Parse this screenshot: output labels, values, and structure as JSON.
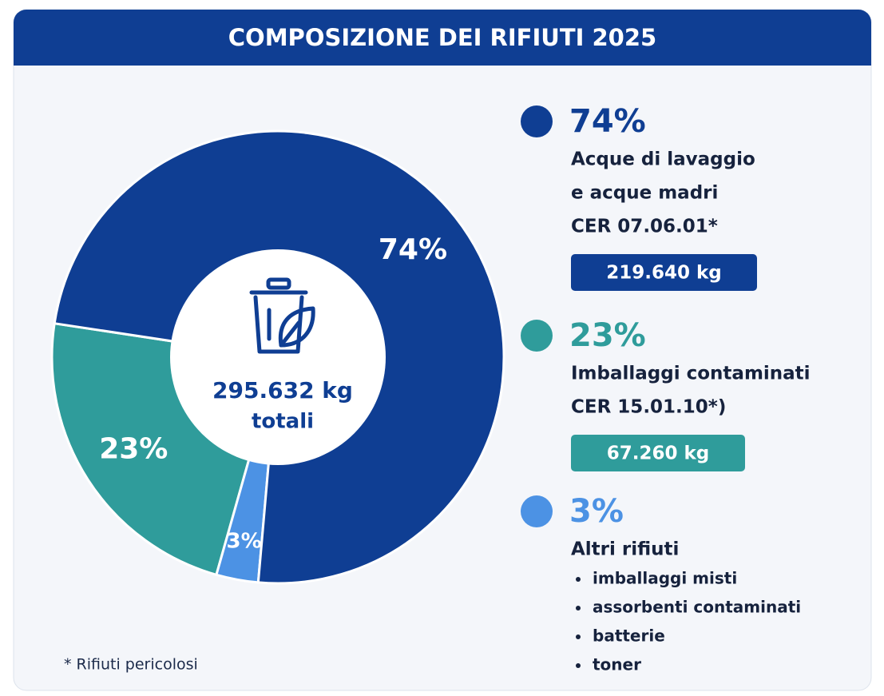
{
  "chart_data": {
    "type": "pie",
    "title": "COMPOSIZIONE DEI RIFIUTI 2025",
    "values": [
      74,
      23,
      3
    ],
    "value_labels": [
      "74%",
      "23%",
      "3%"
    ],
    "colors": [
      "#0f3e93",
      "#2f9c9b",
      "#4c92e4"
    ],
    "center_label": [
      "295.632 kg",
      "totali"
    ],
    "legend": [
      {
        "lines": [
          "Acque di lavaggio",
          "e acque madri",
          "CER 07.06.01*"
        ],
        "amount": "219.640 kg"
      },
      {
        "lines": [
          "Imballaggi contaminati",
          "CER 15.01.10*)"
        ],
        "amount": "67.260 kg"
      },
      {
        "lines": [
          "Altri rifiuti"
        ],
        "items": [
          "imballaggi misti",
          "assorbenti contaminati",
          "batterie",
          "toner"
        ]
      }
    ],
    "footnote": "* Rifiuti pericolosi"
  }
}
